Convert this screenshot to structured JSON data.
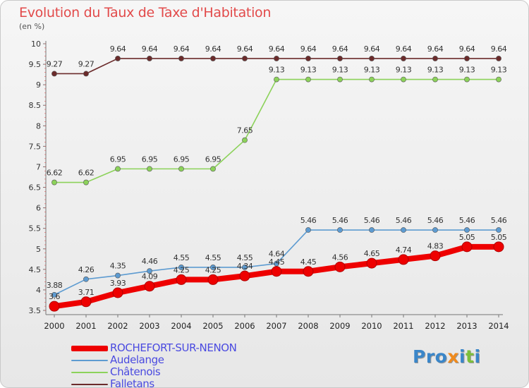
{
  "title": "Evolution du Taux de Taxe d'Habitation",
  "subtitle": "(en %)",
  "logo": {
    "parts": [
      {
        "text": "Pro",
        "color": "#3a86c9"
      },
      {
        "text": "x",
        "color": "#f08a1c"
      },
      {
        "text": "i",
        "color": "#3a86c9"
      },
      {
        "text": "t",
        "color": "#7cbf3a"
      },
      {
        "text": "i",
        "color": "#3a86c9"
      }
    ]
  },
  "chart_data": {
    "type": "line",
    "title": "Evolution du Taux de Taxe d'Habitation",
    "ylabel": "(en %)",
    "xlabel": "",
    "x": [
      "2000",
      "2001",
      "2002",
      "2003",
      "2004",
      "2005",
      "2006",
      "2007",
      "2008",
      "2009",
      "2010",
      "2011",
      "2012",
      "2013",
      "2014"
    ],
    "ylim": [
      3.5,
      10
    ],
    "yticks": [
      "3.5",
      "4",
      "4.5",
      "5",
      "5.5",
      "6",
      "6.5",
      "7",
      "7.5",
      "8",
      "8.5",
      "9",
      "9.5",
      "10"
    ],
    "grid": false,
    "legend_position": "bottom-left",
    "series": [
      {
        "name": "ROCHEFORT-SUR-NENON",
        "color": "#ee0000",
        "values": [
          3.6,
          3.71,
          3.93,
          4.09,
          4.25,
          4.25,
          4.34,
          4.45,
          4.45,
          4.56,
          4.65,
          4.74,
          4.83,
          5.05,
          5.05
        ],
        "labels": [
          "3.6",
          "3.71",
          "3.93",
          "4.09",
          "4.25",
          "4.25",
          "4.34",
          "4.45",
          "4.45",
          "4.56",
          "4.65",
          "4.74",
          "4.83",
          "5.05",
          "5.05"
        ]
      },
      {
        "name": "Audelange",
        "color": "#5d9bd1",
        "values": [
          3.88,
          4.26,
          4.35,
          4.46,
          4.55,
          4.55,
          4.55,
          4.64,
          5.46,
          5.46,
          5.46,
          5.46,
          5.46,
          5.46,
          5.46
        ],
        "labels": [
          "3.88",
          "4.26",
          "4.35",
          "4.46",
          "4.55",
          "4.55",
          "4.55",
          "4.64",
          "5.46",
          "5.46",
          "5.46",
          "5.46",
          "5.46",
          "5.46",
          "5.46"
        ]
      },
      {
        "name": "Châtenois",
        "color": "#8cd25a",
        "values": [
          6.62,
          6.62,
          6.95,
          6.95,
          6.95,
          6.95,
          7.65,
          9.13,
          9.13,
          9.13,
          9.13,
          9.13,
          9.13,
          9.13,
          9.13
        ],
        "labels": [
          "6.62",
          "6.62",
          "6.95",
          "6.95",
          "6.95",
          "6.95",
          "7.65",
          "9.13",
          "9.13",
          "9.13",
          "9.13",
          "9.13",
          "9.13",
          "9.13",
          "9.13"
        ]
      },
      {
        "name": "Falletans",
        "color": "#6b2b2b",
        "values": [
          9.27,
          9.27,
          9.64,
          9.64,
          9.64,
          9.64,
          9.64,
          9.64,
          9.64,
          9.64,
          9.64,
          9.64,
          9.64,
          9.64,
          9.64
        ],
        "labels": [
          "9.27",
          "9.27",
          "9.64",
          "9.64",
          "9.64",
          "9.64",
          "9.64",
          "9.64",
          "9.64",
          "9.64",
          "9.64",
          "9.64",
          "9.64",
          "9.64",
          "9.64"
        ]
      }
    ]
  }
}
